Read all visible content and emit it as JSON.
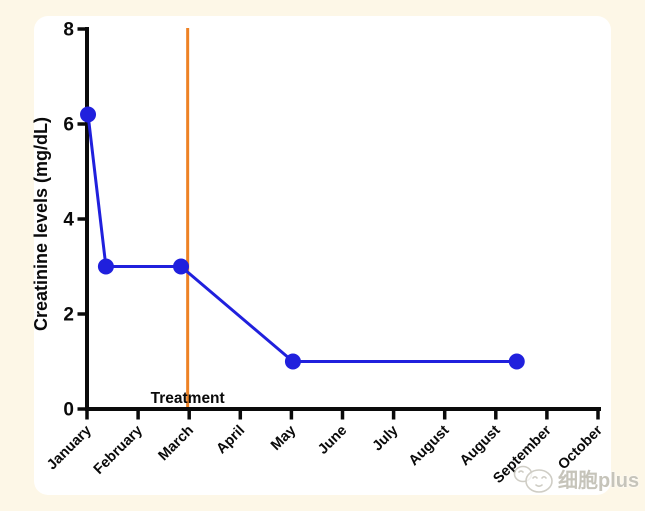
{
  "page": {
    "background": "#fdf7e7",
    "panel_background": "#ffffff"
  },
  "watermark": {
    "icon": "cell-face-icon",
    "text": "细胞plus"
  },
  "chart_data": {
    "type": "line",
    "title": "",
    "xlabel": "",
    "ylabel": "Creatinine levels (mg/dL)",
    "x_unit": "month-index (0 = January tick)",
    "x_tick_labels": [
      "January",
      "February",
      "March",
      "April",
      "May",
      "June",
      "July",
      "August",
      "August",
      "September",
      "October"
    ],
    "y_ticks": [
      0,
      2,
      4,
      6,
      8
    ],
    "ylim": [
      0,
      8
    ],
    "xlim": [
      0,
      10
    ],
    "grid": false,
    "legend": "none",
    "axis_color": "#0a0a0a",
    "series": [
      {
        "name": "Creatinine levels",
        "color": "#2020dd",
        "marker": "circle",
        "marker_radius": 8,
        "line_width": 3,
        "points": [
          {
            "x": 0.02,
            "y": 6.2
          },
          {
            "x": 0.37,
            "y": 3.0
          },
          {
            "x": 1.84,
            "y": 3.0
          },
          {
            "x": 4.03,
            "y": 1.0
          },
          {
            "x": 8.41,
            "y": 1.0
          }
        ]
      }
    ],
    "annotations": [
      {
        "type": "vline",
        "x": 1.97,
        "color": "#ee8224",
        "width": 3,
        "label": "Treatment",
        "label_color": "#0a0a0a"
      }
    ]
  }
}
